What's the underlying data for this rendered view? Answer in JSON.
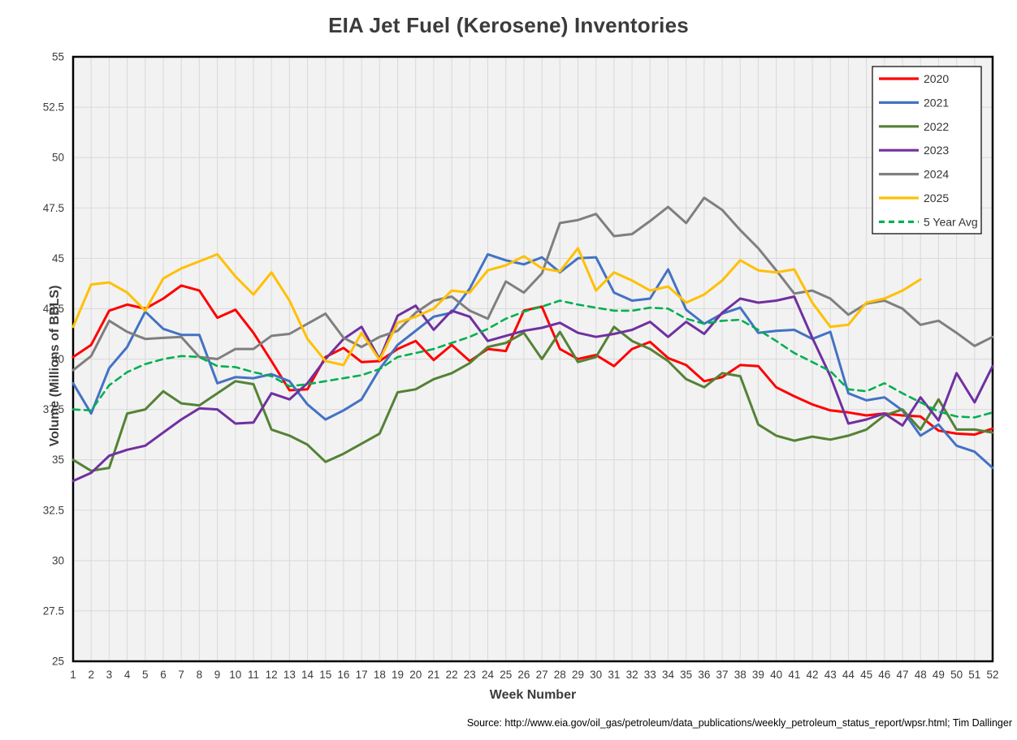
{
  "title": "EIA Jet Fuel (Kerosene) Inventories",
  "source_note": "Source: http://www.eia.gov/oil_gas/petroleum/data_publications/weekly_petroleum_status_report/wpsr.html; Tim Dallinger",
  "chart_data": {
    "type": "line",
    "title": "EIA Jet Fuel (Kerosene) Inventories",
    "xlabel": "Week Number",
    "ylabel": "Volume (Millions of BBLS)",
    "ylim": [
      25,
      55
    ],
    "ytick_labels": [
      "25",
      "27.5",
      "30",
      "32.5",
      "35",
      "37.5",
      "40",
      "42.5",
      "45",
      "47.5",
      "50",
      "52.5",
      "55"
    ],
    "x": [
      1,
      2,
      3,
      4,
      5,
      6,
      7,
      8,
      9,
      10,
      11,
      12,
      13,
      14,
      15,
      16,
      17,
      18,
      19,
      20,
      21,
      22,
      23,
      24,
      25,
      26,
      27,
      28,
      29,
      30,
      31,
      32,
      33,
      34,
      35,
      36,
      37,
      38,
      39,
      40,
      41,
      42,
      43,
      44,
      45,
      46,
      47,
      48,
      49,
      50,
      51,
      52
    ],
    "grid": true,
    "plot_bg": "#F2F2F2",
    "grid_color": "#D9D9D9",
    "axis_border_color": "#000000",
    "legend_position": "top-right",
    "series": [
      {
        "name": "2020",
        "color": "#FF0000",
        "dash": "solid",
        "values": [
          40.1,
          40.7,
          42.4,
          42.7,
          42.5,
          43.0,
          43.65,
          43.4,
          42.05,
          42.45,
          41.3,
          39.9,
          38.45,
          38.5,
          40.1,
          40.55,
          39.85,
          39.9,
          40.5,
          40.9,
          39.95,
          40.7,
          39.9,
          40.5,
          40.4,
          42.4,
          42.6,
          40.5,
          40.0,
          40.2,
          39.65,
          40.5,
          40.85,
          40.05,
          39.7,
          38.9,
          39.1,
          39.7,
          39.65,
          38.6,
          38.15,
          37.75,
          37.45,
          37.35,
          37.2,
          37.3,
          37.2,
          37.15,
          36.45,
          36.3,
          36.25,
          36.55
        ]
      },
      {
        "name": "2021",
        "color": "#4472C4",
        "dash": "solid",
        "values": [
          38.8,
          37.3,
          39.55,
          40.6,
          42.35,
          41.5,
          41.2,
          41.2,
          38.8,
          39.1,
          39.05,
          39.25,
          38.9,
          37.75,
          37.0,
          37.45,
          38.0,
          39.5,
          40.7,
          41.4,
          42.1,
          42.3,
          43.5,
          45.2,
          44.9,
          44.7,
          45.05,
          44.3,
          45.0,
          45.05,
          43.3,
          42.9,
          43.0,
          44.45,
          42.45,
          41.75,
          42.25,
          42.55,
          41.3,
          41.4,
          41.45,
          41.0,
          41.35,
          38.3,
          37.95,
          38.1,
          37.45,
          36.2,
          36.75,
          35.7,
          35.4,
          34.6
        ]
      },
      {
        "name": "2022",
        "color": "#548235",
        "dash": "solid",
        "values": [
          35.0,
          34.45,
          34.6,
          37.3,
          37.5,
          38.4,
          37.8,
          37.7,
          38.3,
          38.9,
          38.75,
          36.5,
          36.2,
          35.75,
          34.9,
          35.3,
          35.8,
          36.3,
          38.35,
          38.5,
          39.0,
          39.3,
          39.8,
          40.6,
          40.8,
          41.3,
          40.0,
          41.35,
          39.85,
          40.1,
          41.6,
          40.9,
          40.5,
          39.9,
          39.0,
          38.6,
          39.3,
          39.15,
          36.75,
          36.2,
          35.95,
          36.15,
          36.0,
          36.2,
          36.5,
          37.2,
          37.5,
          36.5,
          38.0,
          36.5,
          36.5,
          36.35
        ]
      },
      {
        "name": "2023",
        "color": "#7030A0",
        "dash": "solid",
        "values": [
          33.95,
          34.35,
          35.2,
          35.5,
          35.7,
          36.35,
          37.0,
          37.55,
          37.5,
          36.8,
          36.85,
          38.3,
          38.0,
          38.8,
          40.0,
          41.0,
          41.6,
          40.0,
          42.15,
          42.65,
          41.45,
          42.4,
          42.1,
          40.9,
          41.15,
          41.4,
          41.55,
          41.8,
          41.3,
          41.1,
          41.25,
          41.45,
          41.85,
          41.1,
          41.85,
          41.25,
          42.3,
          43.0,
          42.8,
          42.9,
          43.1,
          41.05,
          39.15,
          36.8,
          37.0,
          37.3,
          36.7,
          38.1,
          36.95,
          39.3,
          37.85,
          39.65
        ]
      },
      {
        "name": "2024",
        "color": "#7F7F7F",
        "dash": "solid",
        "values": [
          39.45,
          40.15,
          41.9,
          41.35,
          41.0,
          41.05,
          41.1,
          40.1,
          40.0,
          40.5,
          40.5,
          41.15,
          41.25,
          41.75,
          42.25,
          41.05,
          40.6,
          41.1,
          41.4,
          42.3,
          42.9,
          43.1,
          42.4,
          42.0,
          43.85,
          43.3,
          44.25,
          46.75,
          46.9,
          47.2,
          46.1,
          46.2,
          46.85,
          47.55,
          46.75,
          48.0,
          47.4,
          46.4,
          45.5,
          44.4,
          43.25,
          43.4,
          43.0,
          42.2,
          42.75,
          42.9,
          42.5,
          41.7,
          41.9,
          41.3,
          40.65,
          41.1
        ]
      },
      {
        "name": "2025",
        "color": "#FFC000",
        "dash": "solid",
        "values": [
          41.6,
          43.7,
          43.8,
          43.3,
          42.4,
          44.0,
          44.5,
          44.85,
          45.2,
          44.1,
          43.2,
          44.3,
          42.9,
          41.0,
          39.9,
          39.7,
          41.3,
          39.95,
          41.8,
          42.1,
          42.5,
          43.4,
          43.3,
          44.4,
          44.65,
          45.1,
          44.5,
          44.35,
          45.5,
          43.4,
          44.3,
          43.9,
          43.4,
          43.6,
          42.8,
          43.2,
          43.9,
          44.9,
          44.4,
          44.3,
          44.45,
          42.8,
          41.6,
          41.7,
          42.8,
          43.0,
          43.4,
          43.95
        ]
      },
      {
        "name": "5 Year Avg",
        "color": "#00B050",
        "dash": "dashed",
        "values": [
          37.5,
          37.45,
          38.7,
          39.35,
          39.75,
          40.0,
          40.15,
          40.1,
          39.65,
          39.6,
          39.35,
          39.15,
          38.65,
          38.75,
          38.9,
          39.05,
          39.2,
          39.5,
          40.1,
          40.3,
          40.5,
          40.8,
          41.1,
          41.5,
          42.0,
          42.35,
          42.6,
          42.9,
          42.7,
          42.55,
          42.4,
          42.4,
          42.55,
          42.5,
          42.0,
          41.75,
          41.9,
          41.95,
          41.45,
          40.9,
          40.3,
          39.85,
          39.4,
          38.5,
          38.4,
          38.8,
          38.3,
          37.85,
          37.4,
          37.15,
          37.1,
          37.35
        ]
      }
    ]
  }
}
